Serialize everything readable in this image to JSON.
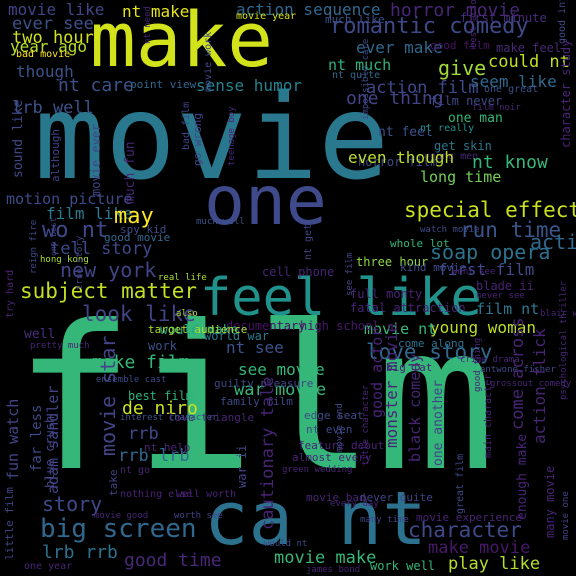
{
  "background": "#000000",
  "palette": {
    "dark_purple": "#440154",
    "indigo": "#472c7a",
    "blue_purple": "#3b528b",
    "steel_blue": "#31688e",
    "teal": "#21918c",
    "sea_green": "#29af7f",
    "green": "#5ec962",
    "lime": "#addc30",
    "yellow": "#fde725"
  },
  "words": [
    {
      "text": "film",
      "color": "#35b779"
    },
    {
      "text": "movie",
      "color": "#2a788e"
    },
    {
      "text": "make",
      "color": "#d2e21b"
    },
    {
      "text": "one",
      "color": "#3e4a89"
    },
    {
      "text": "feel like",
      "color": "#21918c"
    },
    {
      "text": "ca nt",
      "color": "#2c728e"
    },
    {
      "text": "romantic comedy",
      "color": "#3e4989"
    },
    {
      "text": "action sequence",
      "color": "#31688e"
    },
    {
      "text": "horror movie",
      "color": "#482677"
    },
    {
      "text": "movie like",
      "color": "#414487"
    },
    {
      "text": "nt make",
      "color": "#e5e419"
    },
    {
      "text": "ever see",
      "color": "#3b528b"
    },
    {
      "text": "two hour",
      "color": "#d0e11c"
    },
    {
      "text": "year ago",
      "color": "#b5de2b"
    },
    {
      "text": "though",
      "color": "#3b528b"
    },
    {
      "text": "nt care",
      "color": "#3b528b"
    },
    {
      "text": "sense humor",
      "color": "#26828e"
    },
    {
      "text": "action film",
      "color": "#3e4a89"
    },
    {
      "text": "ever make",
      "color": "#31688e"
    },
    {
      "text": "nt much",
      "color": "#2db27d"
    },
    {
      "text": "give",
      "color": "#a0da39"
    },
    {
      "text": "could nt",
      "color": "#c2df23"
    },
    {
      "text": "seem like",
      "color": "#31688e"
    },
    {
      "text": "much like",
      "color": "#3b528b"
    },
    {
      "text": "first minute",
      "color": "#472d7b"
    },
    {
      "text": "good film",
      "color": "#471365"
    },
    {
      "text": "make feel",
      "color": "#482878"
    },
    {
      "text": "lrb well",
      "color": "#3b528b"
    },
    {
      "text": "point view",
      "color": "#31688e"
    },
    {
      "text": "film never",
      "color": "#3e4a89"
    },
    {
      "text": "one man",
      "color": "#35b779"
    },
    {
      "text": "get skin",
      "color": "#2a788e"
    },
    {
      "text": "young men",
      "color": "#482878"
    },
    {
      "text": "nt feel",
      "color": "#3b528b"
    },
    {
      "text": "nt know",
      "color": "#35b779"
    },
    {
      "text": "long time",
      "color": "#73d056"
    },
    {
      "text": "horror film",
      "color": "#3e4a89"
    },
    {
      "text": "motion picture",
      "color": "#3e4a89"
    },
    {
      "text": "film like",
      "color": "#2a788e"
    },
    {
      "text": "wo nt",
      "color": "#3e4989"
    },
    {
      "text": "may",
      "color": "#fde725"
    },
    {
      "text": "tell story",
      "color": "#3e4989"
    },
    {
      "text": "good movie",
      "color": "#31688e"
    },
    {
      "text": "special effect",
      "color": "#cae11f"
    },
    {
      "text": "run time",
      "color": "#39558c"
    },
    {
      "text": "soap opera",
      "color": "#2c728e"
    },
    {
      "text": "new york",
      "color": "#414487"
    },
    {
      "text": "subject matter",
      "color": "#c2df23"
    },
    {
      "text": "look like",
      "color": "#414487"
    },
    {
      "text": "first film",
      "color": "#3e4a89"
    },
    {
      "text": "film nt",
      "color": "#2a788e"
    },
    {
      "text": "young woman",
      "color": "#bddf26"
    },
    {
      "text": "love story",
      "color": "#31688e"
    },
    {
      "text": "movie nt",
      "color": "#35b779"
    },
    {
      "text": "nt see",
      "color": "#3b528b"
    },
    {
      "text": "see movie",
      "color": "#35b779"
    },
    {
      "text": "make film",
      "color": "#35b779"
    },
    {
      "text": "war movie",
      "color": "#35b779"
    },
    {
      "text": "de niro",
      "color": "#cae11f"
    },
    {
      "text": "rrb",
      "color": "#3e4989"
    },
    {
      "text": "rrb lrb",
      "color": "#31688e"
    },
    {
      "text": "story",
      "color": "#3e4989"
    },
    {
      "text": "big screen",
      "color": "#31688e"
    },
    {
      "text": "lrb rrb",
      "color": "#2c728e"
    },
    {
      "text": "good time",
      "color": "#482878"
    },
    {
      "text": "movie make",
      "color": "#37b878"
    },
    {
      "text": "character",
      "color": "#3e4989"
    },
    {
      "text": "make movie",
      "color": "#48186a"
    },
    {
      "text": "play like",
      "color": "#b5de2b"
    },
    {
      "text": "work well",
      "color": "#35b779"
    },
    {
      "text": "documentary",
      "color": "#471063"
    },
    {
      "text": "high school",
      "color": "#48186a"
    },
    {
      "text": "would make",
      "color": "#20a486"
    },
    {
      "text": "world war",
      "color": "#2a788e"
    },
    {
      "text": "work",
      "color": "#3b528b"
    },
    {
      "text": "target audience",
      "color": "#addc30"
    },
    {
      "text": "best film",
      "color": "#2db27d"
    },
    {
      "text": "well",
      "color": "#472d7b"
    },
    {
      "text": "bad movie",
      "color": "#fde725"
    },
    {
      "text": "movie year",
      "color": "#d2e21b"
    },
    {
      "text": "nt quite",
      "color": "#31688e"
    },
    {
      "text": "one great",
      "color": "#3b528b"
    },
    {
      "text": "nt really",
      "color": "#21918c"
    },
    {
      "text": "action movie",
      "color": "#31688e"
    },
    {
      "text": "one thing",
      "color": "#414487"
    },
    {
      "text": "even though",
      "color": "#bddf26"
    },
    {
      "text": "spy kid",
      "color": "#3e4a89"
    },
    {
      "text": "three hour",
      "color": "#90d743"
    },
    {
      "text": "kind movie",
      "color": "#3e4a89"
    },
    {
      "text": "whole lot",
      "color": "#35b779"
    },
    {
      "text": "watch movie",
      "color": "#3e4a89"
    },
    {
      "text": "hong kong",
      "color": "#addc30"
    },
    {
      "text": "much well",
      "color": "#3b528b"
    },
    {
      "text": "real life",
      "color": "#addc30"
    },
    {
      "text": "also",
      "color": "#addc30"
    },
    {
      "text": "cell phone",
      "color": "#482475"
    },
    {
      "text": "full monty",
      "color": "#482475"
    },
    {
      "text": "fatal attraction",
      "color": "#482475"
    },
    {
      "text": "blade ii",
      "color": "#482475"
    },
    {
      "text": "never see",
      "color": "#482475"
    },
    {
      "text": "wont see",
      "color": "#482475"
    },
    {
      "text": "blair witch",
      "color": "#482475"
    },
    {
      "text": "crime drama",
      "color": "#482475"
    },
    {
      "text": "pretty much",
      "color": "#482475"
    },
    {
      "text": "come along",
      "color": "#2c728e"
    },
    {
      "text": "big fat",
      "color": "#482475"
    },
    {
      "text": "antwone fisher",
      "color": "#3e4a89"
    },
    {
      "text": "guilty pleasure",
      "color": "#414487"
    },
    {
      "text": "ensemble cast",
      "color": "#3e4a89"
    },
    {
      "text": "family film",
      "color": "#3e4a89"
    },
    {
      "text": "edge seat",
      "color": "#3e4a89"
    },
    {
      "text": "nt even",
      "color": "#3e4a89"
    },
    {
      "text": "love triangle",
      "color": "#482475"
    },
    {
      "text": "interest character",
      "color": "#3b528b"
    },
    {
      "text": "nt help",
      "color": "#482475"
    },
    {
      "text": "feature debut",
      "color": "#482475"
    },
    {
      "text": "almost every",
      "color": "#482475"
    },
    {
      "text": "green wedding",
      "color": "#482475"
    },
    {
      "text": "nt go",
      "color": "#482475"
    },
    {
      "text": "nothing else",
      "color": "#482475"
    },
    {
      "text": "well worth",
      "color": "#482475"
    },
    {
      "text": "movie bad",
      "color": "#482475"
    },
    {
      "text": "never quite",
      "color": "#414487"
    },
    {
      "text": "worth see",
      "color": "#414487"
    },
    {
      "text": "many time",
      "color": "#414487"
    },
    {
      "text": "movie experience",
      "color": "#482475"
    },
    {
      "text": "one year",
      "color": "#482475"
    },
    {
      "text": "would nt",
      "color": "#3e4a89"
    },
    {
      "text": "james bond",
      "color": "#482475"
    },
    {
      "text": "movie good",
      "color": "#482475"
    },
    {
      "text": "film noir",
      "color": "#482475"
    },
    {
      "text": "grossout comedy",
      "color": "#482475"
    },
    {
      "text": "every day",
      "color": "#482475"
    },
    {
      "text": "movie work",
      "color": "#3e4a89"
    },
    {
      "text": "good intention",
      "color": "#3e4a89"
    },
    {
      "text": "nt need",
      "color": "#482475"
    },
    {
      "text": "best actor",
      "color": "#482475"
    },
    {
      "text": "character study",
      "color": "#482475"
    },
    {
      "text": "impossible care",
      "color": "#3e4a89"
    },
    {
      "text": "sound like",
      "color": "#3e4a89"
    },
    {
      "text": "much fun",
      "color": "#482475"
    },
    {
      "text": "movie ever",
      "color": "#414487"
    },
    {
      "text": "although",
      "color": "#414487"
    },
    {
      "text": "go wrong",
      "color": "#414487"
    },
    {
      "text": "bad film",
      "color": "#414487"
    },
    {
      "text": "teenage boy",
      "color": "#482475"
    },
    {
      "text": "reign fire",
      "color": "#3e4a89"
    },
    {
      "text": "one best",
      "color": "#414487"
    },
    {
      "text": "true story",
      "color": "#414487"
    },
    {
      "text": "see film",
      "color": "#414487"
    },
    {
      "text": "nt get",
      "color": "#414487"
    },
    {
      "text": "try hard",
      "color": "#482475"
    },
    {
      "text": "good thing",
      "color": "#482475"
    },
    {
      "text": "psychological thriller",
      "color": "#482475"
    },
    {
      "text": "fun watch",
      "color": "#414487"
    },
    {
      "text": "blue crush",
      "color": "#414487"
    },
    {
      "text": "adam sandler",
      "color": "#414487"
    },
    {
      "text": "take",
      "color": "#414487"
    },
    {
      "text": "movie star",
      "color": "#414487"
    },
    {
      "text": "far less",
      "color": "#3e4a89"
    },
    {
      "text": "little film",
      "color": "#414487"
    },
    {
      "text": "cautionary tale",
      "color": "#482475"
    },
    {
      "text": "war ii",
      "color": "#414487"
    },
    {
      "text": "movie end",
      "color": "#3e4a89"
    },
    {
      "text": "title character",
      "color": "#482475"
    },
    {
      "text": "monster movie",
      "color": "#482475"
    },
    {
      "text": "good actor",
      "color": "#482475"
    },
    {
      "text": "black comedy",
      "color": "#482475"
    },
    {
      "text": "one another",
      "color": "#414487"
    },
    {
      "text": "great film",
      "color": "#3e4a89"
    },
    {
      "text": "main character",
      "color": "#482475"
    },
    {
      "text": "come across",
      "color": "#482475"
    },
    {
      "text": "action flick",
      "color": "#482475"
    },
    {
      "text": "enough make",
      "color": "#482475"
    },
    {
      "text": "many movie",
      "color": "#482475"
    },
    {
      "text": "movie one",
      "color": "#414487"
    }
  ]
}
